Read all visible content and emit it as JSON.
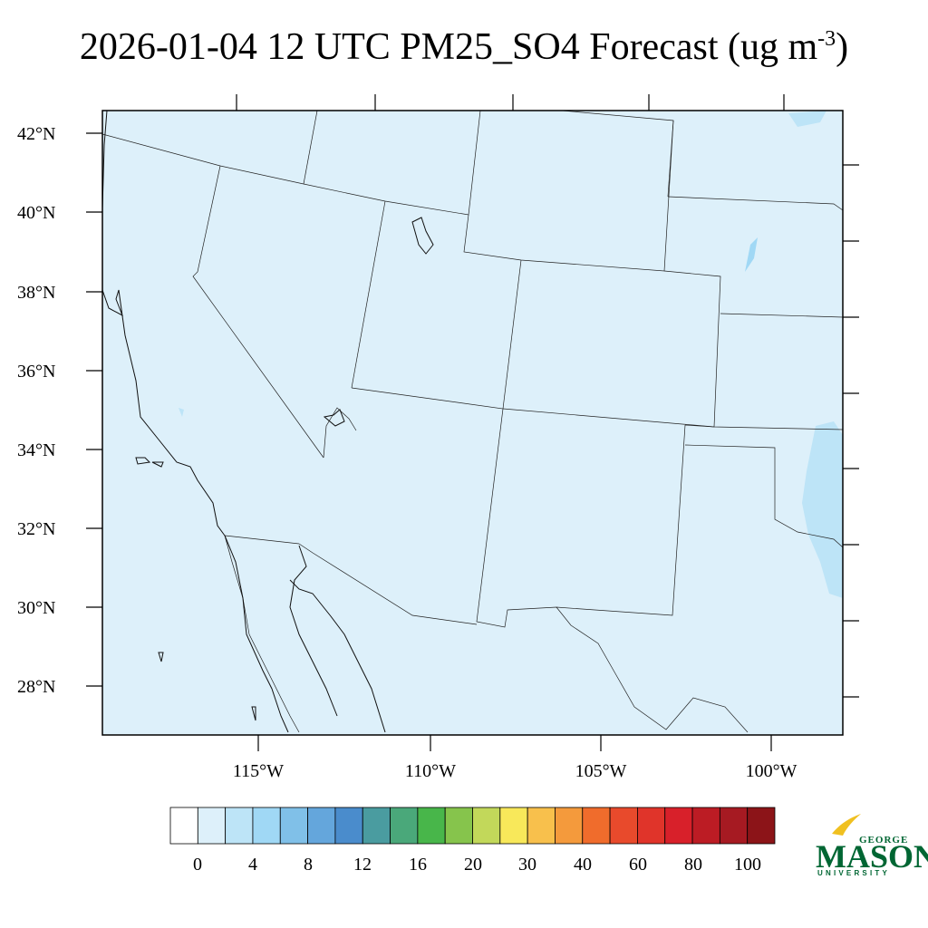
{
  "title": {
    "main": "2026-01-04 12 UTC PM25_SO4 Forecast (ug m",
    "sup": "-3",
    "close": ")"
  },
  "map": {
    "background_color": "#ddf0fa",
    "lat_labels": [
      "42°N",
      "40°N",
      "38°N",
      "36°N",
      "34°N",
      "32°N",
      "30°N",
      "28°N"
    ],
    "lon_labels": [
      "115°W",
      "110°W",
      "105°W",
      "100°W"
    ]
  },
  "colorbar": {
    "colors": [
      "#ffffff",
      "#ddf0fa",
      "#bde4f7",
      "#a0d8f5",
      "#80c0e8",
      "#64a6dc",
      "#4a8ccc",
      "#4a9ca0",
      "#4aa87a",
      "#48b64a",
      "#86c44c",
      "#c2d85a",
      "#f8e85a",
      "#f8c04c",
      "#f49a3c",
      "#f06c2c",
      "#e84a2c",
      "#e0342a",
      "#d8202a",
      "#bc1c24",
      "#a61a22",
      "#8c1418"
    ],
    "tick_labels": [
      "0",
      "4",
      "8",
      "12",
      "16",
      "20",
      "30",
      "40",
      "60",
      "80",
      "100"
    ]
  },
  "logo": {
    "line1": "GEORGE",
    "line2": "MASON",
    "line3": "UNIVERSITY",
    "color": "#006633",
    "accent": "#f0c020"
  }
}
